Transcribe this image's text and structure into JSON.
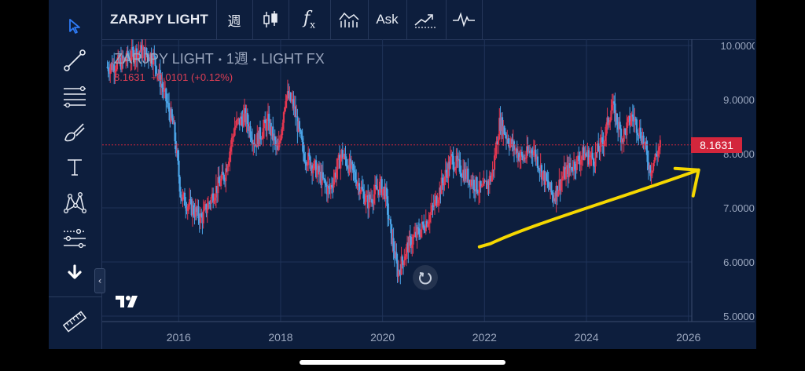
{
  "toolbar": {
    "symbol": "ZARJPY LIGHT",
    "interval": "週",
    "fx_label": "f",
    "fx_sub": "x",
    "ask_label": "Ask"
  },
  "sidebar": {
    "tools": [
      "cursor-icon",
      "trend-line-icon",
      "fib-lines-icon",
      "brush-icon",
      "text-icon",
      "pattern-icon",
      "forecast-icon",
      "arrow-down-icon",
      "ruler-icon"
    ],
    "collapse_glyph": "‹"
  },
  "legend": {
    "symbol": "ZARJPY LIGHT",
    "interval": "1週",
    "source": "LIGHT FX",
    "separator": "•",
    "last": "8.1631",
    "change": "+0.0101",
    "change_pct": "(+0.12%)"
  },
  "price_tag": "8.1631",
  "colors": {
    "background": "#0d1e3d",
    "up": "#e23650",
    "down": "#4aa3e6",
    "annotation": "#f5d800",
    "price_line": "#d3263c"
  },
  "chart_data": {
    "type": "candlestick",
    "symbol": "ZARJPY LIGHT",
    "interval": "1週",
    "last_price": 8.1631,
    "y_axis": {
      "ticks": [
        "10.0000",
        "9.0000",
        "8.0000",
        "7.0000",
        "6.0000",
        "5.0000"
      ],
      "ylim": [
        5.0,
        10.0
      ]
    },
    "x_axis": {
      "ticks": [
        "2016",
        "2018",
        "2020",
        "2022",
        "2024",
        "2026"
      ],
      "xlim": [
        2014.5,
        2027.3
      ]
    },
    "grid": true,
    "trend_path": [
      [
        2014.6,
        9.6
      ],
      [
        2014.9,
        9.7
      ],
      [
        2015.2,
        9.9
      ],
      [
        2015.5,
        9.8
      ],
      [
        2015.75,
        9.0
      ],
      [
        2015.9,
        8.5
      ],
      [
        2016.05,
        7.2
      ],
      [
        2016.25,
        7.0
      ],
      [
        2016.45,
        6.8
      ],
      [
        2016.7,
        7.3
      ],
      [
        2016.9,
        7.6
      ],
      [
        2017.1,
        8.5
      ],
      [
        2017.3,
        8.7
      ],
      [
        2017.5,
        8.2
      ],
      [
        2017.75,
        8.6
      ],
      [
        2017.95,
        8.0
      ],
      [
        2018.1,
        9.1
      ],
      [
        2018.25,
        8.9
      ],
      [
        2018.45,
        8.0
      ],
      [
        2018.7,
        7.7
      ],
      [
        2018.95,
        7.3
      ],
      [
        2019.2,
        8.0
      ],
      [
        2019.45,
        7.6
      ],
      [
        2019.7,
        7.1
      ],
      [
        2019.95,
        7.4
      ],
      [
        2020.05,
        7.3
      ],
      [
        2020.15,
        6.6
      ],
      [
        2020.3,
        5.8
      ],
      [
        2020.5,
        6.3
      ],
      [
        2020.75,
        6.6
      ],
      [
        2020.95,
        6.9
      ],
      [
        2021.15,
        7.4
      ],
      [
        2021.35,
        7.9
      ],
      [
        2021.55,
        7.7
      ],
      [
        2021.75,
        7.5
      ],
      [
        2021.95,
        7.3
      ],
      [
        2022.15,
        7.6
      ],
      [
        2022.3,
        8.6
      ],
      [
        2022.5,
        8.2
      ],
      [
        2022.75,
        7.9
      ],
      [
        2022.95,
        8.1
      ],
      [
        2023.15,
        7.6
      ],
      [
        2023.35,
        7.2
      ],
      [
        2023.55,
        7.6
      ],
      [
        2023.75,
        7.8
      ],
      [
        2023.95,
        8.0
      ],
      [
        2024.15,
        7.9
      ],
      [
        2024.35,
        8.3
      ],
      [
        2024.5,
        8.9
      ],
      [
        2024.7,
        8.3
      ],
      [
        2024.9,
        8.7
      ],
      [
        2025.1,
        8.3
      ],
      [
        2025.25,
        7.7
      ],
      [
        2025.45,
        8.16
      ]
    ],
    "annotation": {
      "type": "hand-drawn arrow",
      "from": [
        2021.9,
        6.28
      ],
      "to": [
        2026.2,
        7.7
      ]
    }
  }
}
